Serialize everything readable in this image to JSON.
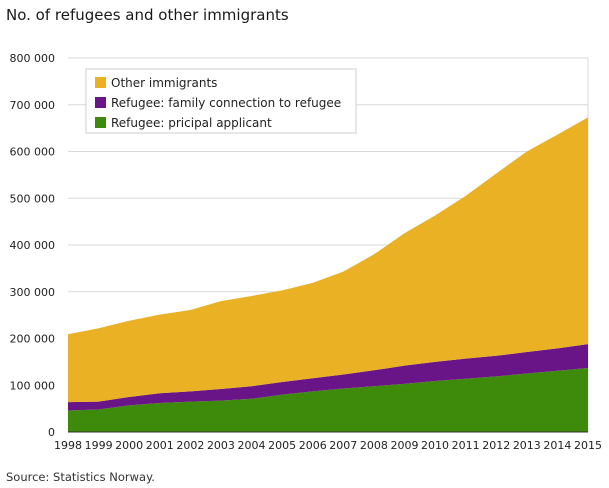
{
  "title": "No. of refugees and other immigrants",
  "source": "Source: Statistics Norway.",
  "chart_data": {
    "type": "area",
    "stacked": true,
    "categories": [
      "1998",
      "1999",
      "2000",
      "2001",
      "2002",
      "2003",
      "2004",
      "2005",
      "2006",
      "2007",
      "2008",
      "2009",
      "2010",
      "2011",
      "2012",
      "2013",
      "2014",
      "2015"
    ],
    "series": [
      {
        "name": "Refugee: pricipal applicant",
        "color": "#3e8a0a",
        "values": [
          46000,
          48000,
          57000,
          62000,
          65000,
          67000,
          71000,
          80000,
          87000,
          93000,
          98000,
          103000,
          109000,
          114000,
          119000,
          125000,
          131000,
          137000
        ]
      },
      {
        "name": "Refugee: family connection to refugee",
        "color": "#6a1587",
        "values": [
          18000,
          17000,
          18000,
          21000,
          22000,
          25000,
          27000,
          27000,
          28000,
          30000,
          34000,
          39000,
          41000,
          43000,
          44000,
          46000,
          48000,
          51000
        ]
      },
      {
        "name": "Other immigrants",
        "color": "#eab124",
        "values": [
          145000,
          157000,
          163000,
          168000,
          174000,
          188000,
          193000,
          196000,
          204000,
          220000,
          248000,
          283000,
          313000,
          348000,
          390000,
          429000,
          457000,
          485000
        ]
      }
    ],
    "ylim": [
      0,
      800000
    ],
    "yticks": [
      "0",
      "100 000",
      "200 000",
      "300 000",
      "400 000",
      "500 000",
      "600 000",
      "700 000",
      "800 000"
    ],
    "grid": true,
    "legend_position": "top-left",
    "legend_order": [
      "Other immigrants",
      "Refugee: family connection to refugee",
      "Refugee: pricipal applicant"
    ]
  }
}
